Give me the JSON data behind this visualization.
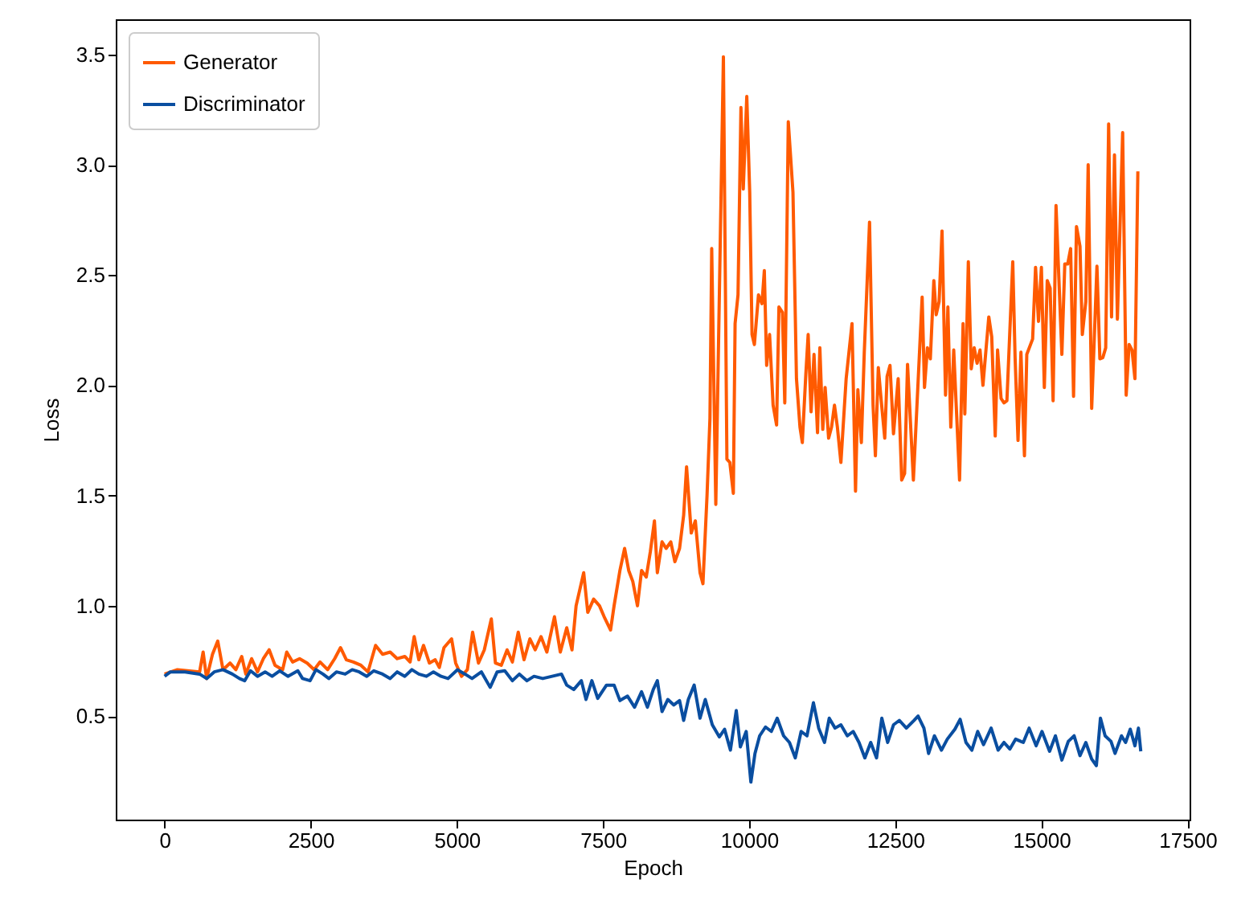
{
  "chart_data": {
    "type": "line",
    "xlabel": "Epoch",
    "ylabel": "Loss",
    "legend": "top left",
    "xlim": [
      -835,
      17535
    ],
    "xticks": [
      0,
      2500,
      5000,
      7500,
      10000,
      12500,
      15000,
      17500
    ],
    "ylim": [
      0.03,
      3.66
    ],
    "yticks": [
      {
        "value": 0.5,
        "label": "0.5"
      },
      {
        "value": 1,
        "label": "1.0"
      },
      {
        "value": 1.5,
        "label": "1.5"
      },
      {
        "value": 2,
        "label": "2.0"
      },
      {
        "value": 2.5,
        "label": "2.5"
      },
      {
        "value": 3,
        "label": "3.0"
      },
      {
        "value": 3.5,
        "label": "3.5"
      }
    ],
    "series": [
      {
        "name": "Generator",
        "color": "#ff5a00",
        "x": [
          0,
          220,
          600,
          660,
          720,
          820,
          910,
          1000,
          1120,
          1220,
          1320,
          1390,
          1490,
          1590,
          1690,
          1790,
          1890,
          2020,
          2090,
          2190,
          2310,
          2440,
          2560,
          2660,
          2790,
          2910,
          3010,
          3110,
          3230,
          3360,
          3480,
          3610,
          3730,
          3860,
          3980,
          4110,
          4200,
          4270,
          4350,
          4430,
          4530,
          4630,
          4700,
          4780,
          4910,
          4980,
          5080,
          5180,
          5270,
          5370,
          5470,
          5590,
          5660,
          5760,
          5860,
          5950,
          6050,
          6150,
          6250,
          6340,
          6440,
          6540,
          6670,
          6770,
          6880,
          6970,
          7040,
          7170,
          7240,
          7340,
          7440,
          7520,
          7630,
          7690,
          7790,
          7870,
          7940,
          8010,
          8090,
          8160,
          8240,
          8310,
          8380,
          8430,
          8510,
          8580,
          8660,
          8730,
          8810,
          8880,
          8930,
          9010,
          9080,
          9160,
          9210,
          9280,
          9330,
          9360,
          9430,
          9560,
          9620,
          9670,
          9730,
          9760,
          9810,
          9860,
          9900,
          9960,
          10010,
          10050,
          10090,
          10160,
          10220,
          10260,
          10300,
          10350,
          10410,
          10470,
          10510,
          10570,
          10610,
          10670,
          10750,
          10810,
          10870,
          10910,
          10970,
          11010,
          11060,
          11110,
          11170,
          11210,
          11260,
          11300,
          11360,
          11410,
          11460,
          11510,
          11570,
          11660,
          11760,
          11820,
          11860,
          11920,
          11970,
          12060,
          12120,
          12160,
          12210,
          12260,
          12320,
          12360,
          12410,
          12470,
          12550,
          12610,
          12660,
          12710,
          12810,
          12960,
          13000,
          13050,
          13100,
          13160,
          13200,
          13250,
          13300,
          13360,
          13400,
          13450,
          13500,
          13600,
          13660,
          13690,
          13750,
          13800,
          13850,
          13900,
          13950,
          14000,
          14100,
          14150,
          14210,
          14250,
          14310,
          14360,
          14410,
          14510,
          14550,
          14600,
          14650,
          14710,
          14750,
          14850,
          14900,
          14950,
          15000,
          15050,
          15100,
          15150,
          15200,
          15250,
          15350,
          15400,
          15450,
          15500,
          15550,
          15600,
          15660,
          15700,
          15760,
          15800,
          15860,
          15950,
          16000,
          16050,
          16100,
          16150,
          16200,
          16250,
          16300,
          16390,
          16450,
          16500,
          16550,
          16600,
          16650
        ],
        "values": [
          0.69,
          0.71,
          0.7,
          0.79,
          0.67,
          0.78,
          0.84,
          0.71,
          0.74,
          0.71,
          0.77,
          0.69,
          0.76,
          0.7,
          0.76,
          0.8,
          0.73,
          0.71,
          0.79,
          0.745,
          0.76,
          0.74,
          0.71,
          0.745,
          0.71,
          0.76,
          0.81,
          0.755,
          0.745,
          0.73,
          0.7,
          0.82,
          0.78,
          0.79,
          0.76,
          0.77,
          0.745,
          0.86,
          0.755,
          0.82,
          0.74,
          0.755,
          0.72,
          0.81,
          0.85,
          0.74,
          0.68,
          0.71,
          0.88,
          0.74,
          0.8,
          0.94,
          0.74,
          0.73,
          0.8,
          0.745,
          0.88,
          0.755,
          0.85,
          0.8,
          0.86,
          0.79,
          0.95,
          0.79,
          0.9,
          0.8,
          1.0,
          1.15,
          0.97,
          1.03,
          1.0,
          0.95,
          0.89,
          1.0,
          1.16,
          1.26,
          1.16,
          1.11,
          1.0,
          1.16,
          1.13,
          1.245,
          1.385,
          1.15,
          1.29,
          1.26,
          1.29,
          1.2,
          1.26,
          1.41,
          1.63,
          1.33,
          1.385,
          1.15,
          1.1,
          1.5,
          1.85,
          2.62,
          1.46,
          3.49,
          1.665,
          1.65,
          1.51,
          2.28,
          2.41,
          3.26,
          2.89,
          3.31,
          2.875,
          2.23,
          2.185,
          2.41,
          2.37,
          2.52,
          2.09,
          2.23,
          1.91,
          1.82,
          2.355,
          2.33,
          1.92,
          3.195,
          2.875,
          2.03,
          1.81,
          1.74,
          2.05,
          2.23,
          1.88,
          2.14,
          1.785,
          2.17,
          1.8,
          1.99,
          1.76,
          1.81,
          1.91,
          1.81,
          1.65,
          2.03,
          2.28,
          1.52,
          1.98,
          1.74,
          2.15,
          2.74,
          1.91,
          1.68,
          2.08,
          1.93,
          1.76,
          2.04,
          2.09,
          1.78,
          2.03,
          1.57,
          1.6,
          2.095,
          1.57,
          2.4,
          1.99,
          2.17,
          2.12,
          2.475,
          2.32,
          2.38,
          2.7,
          1.955,
          2.355,
          1.81,
          2.16,
          1.57,
          2.28,
          1.87,
          2.56,
          2.075,
          2.17,
          2.1,
          2.16,
          2.0,
          2.31,
          2.22,
          1.77,
          2.16,
          1.94,
          1.92,
          1.93,
          2.56,
          2.125,
          1.75,
          2.15,
          1.68,
          2.14,
          2.21,
          2.535,
          2.29,
          2.535,
          1.99,
          2.475,
          2.44,
          1.93,
          2.815,
          2.14,
          2.55,
          2.55,
          2.62,
          1.95,
          2.72,
          2.63,
          2.23,
          2.38,
          3.0,
          1.895,
          2.54,
          2.12,
          2.125,
          2.17,
          3.185,
          2.31,
          3.045,
          2.3,
          3.146,
          1.955,
          2.185,
          2.16,
          2.03,
          2.97
        ]
      },
      {
        "name": "Discriminator",
        "color": "#0a4ea0",
        "x": [
          0,
          100,
          350,
          600,
          720,
          850,
          1000,
          1160,
          1280,
          1370,
          1470,
          1590,
          1720,
          1840,
          1970,
          2110,
          2280,
          2360,
          2490,
          2590,
          2710,
          2810,
          2940,
          3090,
          3210,
          3330,
          3460,
          3580,
          3730,
          3860,
          3980,
          4110,
          4230,
          4350,
          4480,
          4600,
          4730,
          4850,
          5010,
          5140,
          5260,
          5420,
          5570,
          5690,
          5820,
          5950,
          6070,
          6200,
          6320,
          6470,
          6630,
          6790,
          6880,
          7000,
          7130,
          7210,
          7310,
          7410,
          7560,
          7690,
          7790,
          7920,
          8040,
          8160,
          8260,
          8360,
          8430,
          8510,
          8610,
          8710,
          8810,
          8880,
          8960,
          9060,
          9160,
          9250,
          9370,
          9490,
          9580,
          9680,
          9780,
          9850,
          9950,
          10030,
          10100,
          10180,
          10280,
          10380,
          10480,
          10590,
          10690,
          10790,
          10890,
          10990,
          11100,
          11190,
          11290,
          11370,
          11470,
          11570,
          11680,
          11780,
          11880,
          11980,
          12080,
          12180,
          12270,
          12370,
          12470,
          12570,
          12690,
          12820,
          12890,
          12990,
          13070,
          13170,
          13290,
          13390,
          13520,
          13610,
          13710,
          13810,
          13910,
          14010,
          14140,
          14260,
          14360,
          14460,
          14560,
          14690,
          14790,
          14910,
          15010,
          15140,
          15240,
          15350,
          15460,
          15560,
          15660,
          15760,
          15860,
          15940,
          16010,
          16090,
          16190,
          16260,
          16370,
          16440,
          16520,
          16600,
          16660,
          16700
        ],
        "values": [
          0.68,
          0.7,
          0.7,
          0.69,
          0.67,
          0.7,
          0.71,
          0.69,
          0.67,
          0.66,
          0.705,
          0.68,
          0.7,
          0.68,
          0.705,
          0.68,
          0.705,
          0.67,
          0.66,
          0.71,
          0.69,
          0.67,
          0.7,
          0.69,
          0.71,
          0.7,
          0.68,
          0.705,
          0.69,
          0.67,
          0.7,
          0.68,
          0.71,
          0.69,
          0.68,
          0.7,
          0.68,
          0.67,
          0.71,
          0.69,
          0.67,
          0.7,
          0.63,
          0.7,
          0.705,
          0.66,
          0.69,
          0.66,
          0.68,
          0.67,
          0.68,
          0.69,
          0.64,
          0.62,
          0.66,
          0.575,
          0.66,
          0.58,
          0.64,
          0.64,
          0.57,
          0.59,
          0.54,
          0.61,
          0.54,
          0.62,
          0.66,
          0.52,
          0.575,
          0.55,
          0.57,
          0.48,
          0.575,
          0.64,
          0.49,
          0.575,
          0.46,
          0.405,
          0.44,
          0.345,
          0.525,
          0.36,
          0.43,
          0.2,
          0.33,
          0.41,
          0.45,
          0.43,
          0.49,
          0.41,
          0.38,
          0.31,
          0.43,
          0.41,
          0.56,
          0.445,
          0.38,
          0.49,
          0.445,
          0.46,
          0.41,
          0.43,
          0.38,
          0.31,
          0.38,
          0.31,
          0.49,
          0.38,
          0.46,
          0.48,
          0.445,
          0.48,
          0.5,
          0.445,
          0.33,
          0.41,
          0.345,
          0.395,
          0.44,
          0.485,
          0.38,
          0.345,
          0.43,
          0.37,
          0.445,
          0.345,
          0.38,
          0.35,
          0.395,
          0.38,
          0.445,
          0.365,
          0.43,
          0.34,
          0.41,
          0.3,
          0.385,
          0.41,
          0.32,
          0.38,
          0.305,
          0.275,
          0.49,
          0.41,
          0.385,
          0.33,
          0.41,
          0.38,
          0.44,
          0.365,
          0.445,
          0.34
        ]
      }
    ]
  }
}
